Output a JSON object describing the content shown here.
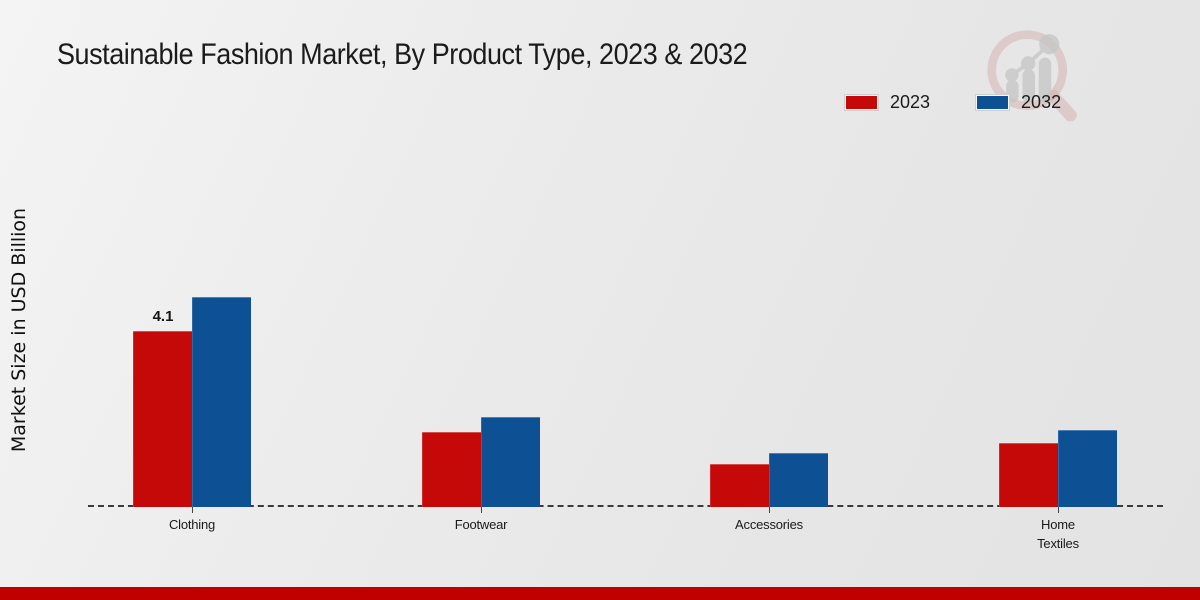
{
  "chart_data": {
    "type": "bar",
    "title": "Sustainable Fashion Market, By Product Type, 2023 & 2032",
    "ylabel": "Market Size in USD Billion",
    "xlabel": "",
    "categories": [
      "Clothing",
      "Footwear",
      "Accessories",
      "Home Textiles"
    ],
    "series": [
      {
        "name": "2023",
        "color": "#c50808",
        "values": [
          4.1,
          1.75,
          1.0,
          1.5
        ]
      },
      {
        "name": "2032",
        "color": "#0d5093",
        "values": [
          4.9,
          2.1,
          1.25,
          1.8
        ]
      }
    ],
    "annotations": [
      {
        "series": "2023",
        "category": "Clothing",
        "text": "4.1"
      }
    ],
    "ylim": [
      0,
      8.5
    ],
    "grid": false,
    "y_tick_labels_visible": false,
    "legend_position": "top-right",
    "baseline_style": "dashed"
  },
  "theme": {
    "footer_band_color": "#c00000",
    "watermark_ring_color": "#cf9f9f",
    "watermark_bar_color": "#c2c2c2",
    "background_color": "#ebebeb"
  }
}
